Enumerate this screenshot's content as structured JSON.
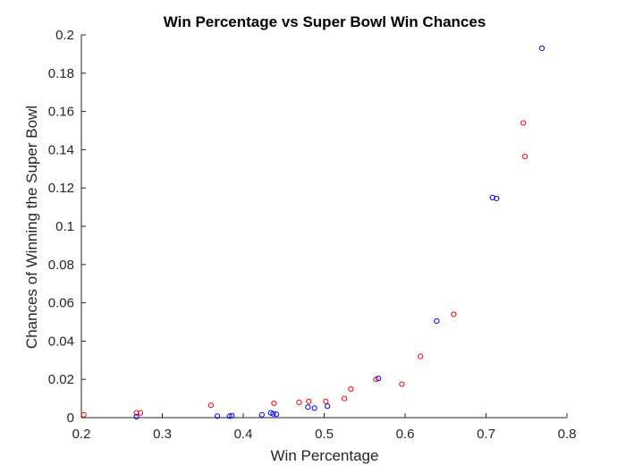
{
  "chart_data": {
    "type": "scatter",
    "title": "Win Percentage vs Super Bowl Win Chances",
    "xlabel": "Win Percentage",
    "ylabel": "Chances of Winning the Super Bowl",
    "xlim": [
      0.2,
      0.8
    ],
    "ylim": [
      0,
      0.2
    ],
    "grid": false,
    "box": "left-bottom",
    "x_ticks": [
      0.2,
      0.3,
      0.4,
      0.5,
      0.6,
      0.7,
      0.8
    ],
    "x_tick_labels": [
      "0.2",
      "0.3",
      "0.4",
      "0.5",
      "0.6",
      "0.7",
      "0.8"
    ],
    "y_ticks": [
      0,
      0.02,
      0.04,
      0.06,
      0.08,
      0.1,
      0.12,
      0.14,
      0.16,
      0.18,
      0.2
    ],
    "y_tick_labels": [
      "0",
      "0.02",
      "0.04",
      "0.06",
      "0.08",
      "0.1",
      "0.12",
      "0.14",
      "0.16",
      "0.18",
      "0.2"
    ],
    "marker": "circle-open",
    "series": [
      {
        "color": "#ff0000",
        "points": [
          {
            "x": 0.203,
            "y": 0.0015
          },
          {
            "x": 0.268,
            "y": 0.0025
          },
          {
            "x": 0.273,
            "y": 0.0025
          },
          {
            "x": 0.36,
            "y": 0.0065
          },
          {
            "x": 0.438,
            "y": 0.0075
          },
          {
            "x": 0.469,
            "y": 0.008
          },
          {
            "x": 0.481,
            "y": 0.0085
          },
          {
            "x": 0.502,
            "y": 0.0085
          },
          {
            "x": 0.525,
            "y": 0.01
          },
          {
            "x": 0.533,
            "y": 0.015
          },
          {
            "x": 0.564,
            "y": 0.02
          },
          {
            "x": 0.596,
            "y": 0.0175
          },
          {
            "x": 0.619,
            "y": 0.032
          },
          {
            "x": 0.66,
            "y": 0.054
          },
          {
            "x": 0.746,
            "y": 0.154
          },
          {
            "x": 0.748,
            "y": 0.1365
          }
        ]
      },
      {
        "color": "#0000ff",
        "points": [
          {
            "x": 0.268,
            "y": 0.0005
          },
          {
            "x": 0.368,
            "y": 0.0008
          },
          {
            "x": 0.383,
            "y": 0.0008
          },
          {
            "x": 0.386,
            "y": 0.001
          },
          {
            "x": 0.423,
            "y": 0.0015
          },
          {
            "x": 0.434,
            "y": 0.0025
          },
          {
            "x": 0.437,
            "y": 0.002
          },
          {
            "x": 0.441,
            "y": 0.0018
          },
          {
            "x": 0.48,
            "y": 0.0055
          },
          {
            "x": 0.488,
            "y": 0.005
          },
          {
            "x": 0.504,
            "y": 0.006
          },
          {
            "x": 0.567,
            "y": 0.0205
          },
          {
            "x": 0.639,
            "y": 0.0505
          },
          {
            "x": 0.708,
            "y": 0.115
          },
          {
            "x": 0.713,
            "y": 0.1145
          },
          {
            "x": 0.769,
            "y": 0.193
          }
        ]
      }
    ]
  }
}
